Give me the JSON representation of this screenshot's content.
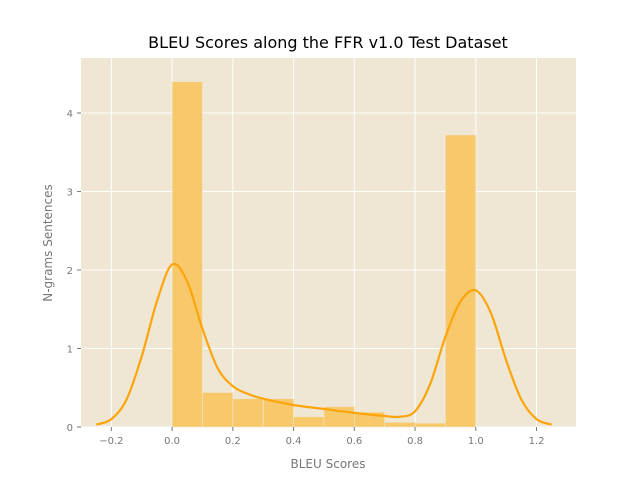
{
  "chart_data": {
    "type": "histogram",
    "title": "BLEU Scores along the FFR v1.0 Test Dataset",
    "xlabel": "BLEU Scores",
    "ylabel": "N-grams Sentences",
    "xlim": [
      -0.3,
      1.33
    ],
    "ylim": [
      0,
      4.7
    ],
    "x_ticks": [
      -0.2,
      0.0,
      0.2,
      0.4,
      0.6,
      0.8,
      1.0,
      1.2
    ],
    "x_tick_labels": [
      "−0.2",
      "0.0",
      "0.2",
      "0.4",
      "0.6",
      "0.8",
      "1.0",
      "1.2"
    ],
    "y_ticks": [
      0,
      1,
      2,
      3,
      4
    ],
    "y_tick_labels": [
      "0",
      "1",
      "2",
      "3",
      "4"
    ],
    "grid": true,
    "bin_edges": [
      0.0,
      0.1,
      0.2,
      0.3,
      0.4,
      0.5,
      0.6,
      0.7,
      0.8,
      0.9,
      1.0
    ],
    "bin_heights": [
      4.4,
      0.44,
      0.36,
      0.36,
      0.13,
      0.26,
      0.19,
      0.06,
      0.05,
      3.72
    ],
    "kde": {
      "x": [
        -0.25,
        -0.2,
        -0.15,
        -0.1,
        -0.05,
        0.0,
        0.05,
        0.1,
        0.15,
        0.2,
        0.25,
        0.3,
        0.4,
        0.5,
        0.6,
        0.7,
        0.75,
        0.8,
        0.85,
        0.9,
        0.95,
        1.0,
        1.05,
        1.1,
        1.15,
        1.2,
        1.25
      ],
      "y": [
        0.03,
        0.1,
        0.35,
        0.9,
        1.6,
        2.07,
        1.85,
        1.25,
        0.75,
        0.52,
        0.42,
        0.36,
        0.28,
        0.23,
        0.18,
        0.14,
        0.13,
        0.2,
        0.55,
        1.15,
        1.6,
        1.74,
        1.45,
        0.85,
        0.35,
        0.1,
        0.03
      ]
    },
    "colors": {
      "axes_background": "#efe6d3",
      "bar_fill": "#f7c96b",
      "kde_line": "#fca50a"
    }
  }
}
